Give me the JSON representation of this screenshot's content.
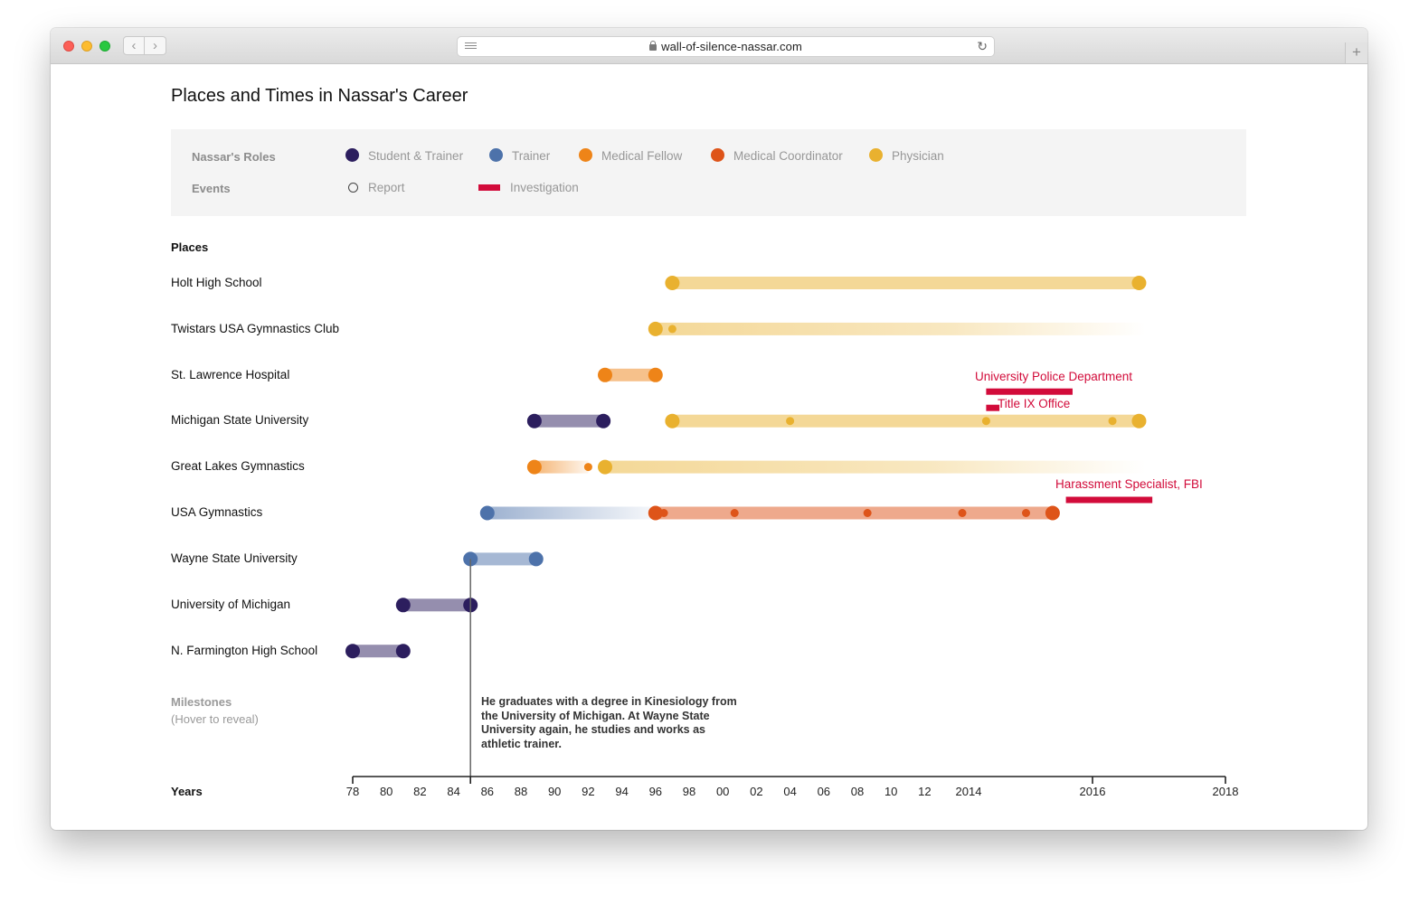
{
  "browser": {
    "url": "wall-of-silence-nassar.com",
    "back_glyph": "‹",
    "forward_glyph": "›",
    "reload_glyph": "↻",
    "newtab_glyph": "+"
  },
  "page": {
    "title": "Places and Times in Nassar's Career"
  },
  "legend": {
    "roles_label": "Nassar's Roles",
    "events_label": "Events",
    "roles": [
      {
        "label": "Student & Trainer",
        "color": "#2c1e5e"
      },
      {
        "label": "Trainer",
        "color": "#4d72aa"
      },
      {
        "label": "Medical Fellow",
        "color": "#ee8418"
      },
      {
        "label": "Medical Coordinator",
        "color": "#de5419"
      },
      {
        "label": "Physician",
        "color": "#e9b12f"
      }
    ],
    "events": [
      {
        "label": "Report",
        "icon": "ring-icon"
      },
      {
        "label": "Investigation",
        "icon": "bar-icon",
        "color": "#d20b3a"
      }
    ]
  },
  "places_label": "Places",
  "places": [
    "Holt High School",
    "Twistars USA Gymnastics Club",
    "St. Lawrence Hospital",
    "Michigan State University",
    "Great Lakes Gymnastics",
    "USA Gymnastics",
    "Wayne State University",
    "University of Michigan",
    "N. Farmington High School"
  ],
  "investigations": [
    {
      "label": "University Police Department",
      "place": "Michigan State University"
    },
    {
      "label": "Title IX Office",
      "place": "Michigan State University"
    },
    {
      "label": "Harassment Specialist, FBI",
      "place": "USA Gymnastics"
    }
  ],
  "milestones": {
    "label": "Milestones",
    "hint": "(Hover to reveal)",
    "active_year": 1985,
    "active_text": "He graduates with a degree in Kinesiology from the University of Michigan. At Wayne State University again, he studies and works as athletic trainer."
  },
  "years_label": "Years",
  "axis": {
    "ticks": [
      "78",
      "80",
      "82",
      "84",
      "86",
      "88",
      "90",
      "92",
      "94",
      "96",
      "98",
      "00",
      "02",
      "04",
      "06",
      "08",
      "10",
      "12",
      "2014",
      "2016",
      "2018"
    ]
  },
  "chart_data": {
    "type": "timeline",
    "title": "Places and Times in Nassar's Career",
    "categories": [
      "Holt High School",
      "Twistars USA Gymnastics Club",
      "St. Lawrence Hospital",
      "Michigan State University",
      "Great Lakes Gymnastics",
      "USA Gymnastics",
      "Wayne State University",
      "University of Michigan",
      "N. Farmington High School"
    ],
    "x_range": [
      1978,
      2018
    ],
    "series": [
      {
        "name": "Student & Trainer",
        "color": "#2c1e5e",
        "periods": [
          {
            "place": "N. Farmington High School",
            "start": 1978.0,
            "end": 1981.0
          },
          {
            "place": "University of Michigan",
            "start": 1981.0,
            "end": 1985.0
          },
          {
            "place": "Michigan State University",
            "start": 1988.8,
            "end": 1992.9
          }
        ]
      },
      {
        "name": "Trainer",
        "color": "#4d72aa",
        "periods": [
          {
            "place": "Wayne State University",
            "start": 1985.0,
            "end": 1988.9
          },
          {
            "place": "USA Gymnastics",
            "start": 1986.0,
            "end": 1996.0,
            "fade": true
          }
        ]
      },
      {
        "name": "Medical Fellow",
        "color": "#ee8418",
        "periods": [
          {
            "place": "St. Lawrence Hospital",
            "start": 1993.0,
            "end": 1996.0
          },
          {
            "place": "Great Lakes Gymnastics",
            "start": 1988.8,
            "end": 1992.0,
            "fade": true
          }
        ]
      },
      {
        "name": "Medical Coordinator",
        "color": "#de5419",
        "periods": [
          {
            "place": "USA Gymnastics",
            "start": 1996.0,
            "end": 2015.4
          }
        ]
      },
      {
        "name": "Physician",
        "color": "#e9b12f",
        "periods": [
          {
            "place": "Holt High School",
            "start": 1997.0,
            "end": 2016.7
          },
          {
            "place": "Twistars USA Gymnastics Club",
            "start": 1996.0,
            "end": 2016.8,
            "fade": true
          },
          {
            "place": "Michigan State University",
            "start": 1997.0,
            "end": 2016.7
          },
          {
            "place": "Great Lakes Gymnastics",
            "start": 1993.0,
            "end": 2016.8,
            "fade": true
          }
        ]
      }
    ],
    "reports": [
      {
        "place": "Twistars USA Gymnastics Club",
        "year": 1997.0,
        "color": "#e9b12f"
      },
      {
        "place": "Michigan State University",
        "year": 2004.0,
        "color": "#e9b12f"
      },
      {
        "place": "Michigan State University",
        "year": 2014.4,
        "color": "#e9b12f"
      },
      {
        "place": "Michigan State University",
        "year": 2016.3,
        "color": "#e9b12f"
      },
      {
        "place": "Great Lakes Gymnastics",
        "year": 1992.0,
        "color": "#ee8418"
      },
      {
        "place": "USA Gymnastics",
        "year": 1996.5,
        "color": "#de5419"
      },
      {
        "place": "USA Gymnastics",
        "year": 2000.7,
        "color": "#de5419"
      },
      {
        "place": "USA Gymnastics",
        "year": 2008.6,
        "color": "#de5419"
      },
      {
        "place": "USA Gymnastics",
        "year": 2012.6,
        "color": "#de5419"
      },
      {
        "place": "USA Gymnastics",
        "year": 2015.0,
        "color": "#de5419"
      }
    ],
    "investigations": [
      {
        "label": "University Police Department",
        "place": "Michigan State University",
        "start": 2014.4,
        "end": 2015.7
      },
      {
        "label": "Title IX Office",
        "place": "Michigan State University",
        "start": 2014.4,
        "end": 2014.6
      },
      {
        "label": "Harassment Specialist, FBI",
        "place": "USA Gymnastics",
        "start": 2015.6,
        "end": 2016.9
      }
    ],
    "xlabel": "Years",
    "ylabel": "Places"
  }
}
